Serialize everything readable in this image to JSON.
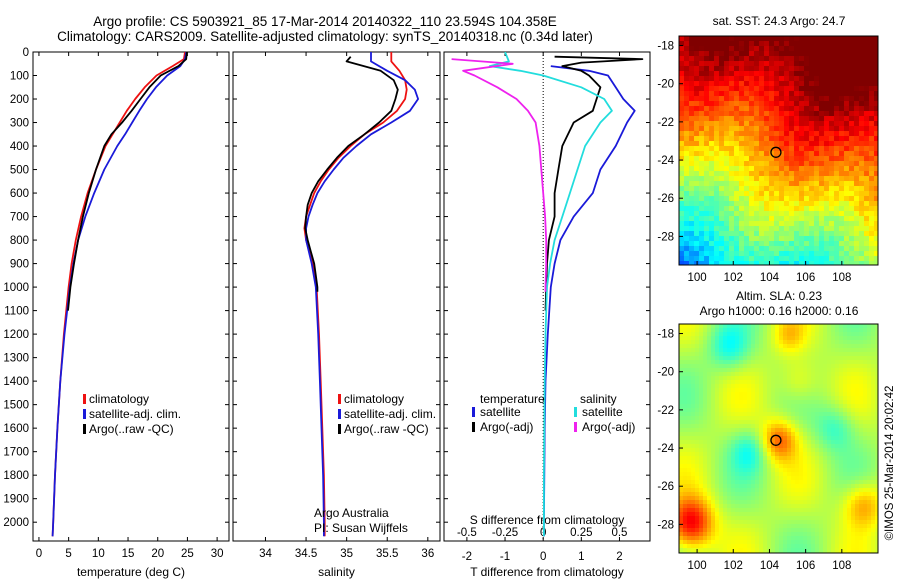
{
  "header": {
    "line1": "Argo profile: CS 5903921_85 17-Mar-2014 20140322_110 23.594S 104.358E",
    "line2": "Climatology: CARS2009. Satellite-adjusted climatology: synTS_20140318.nc (0.34d later)"
  },
  "colors": {
    "climatology": "#ee1111",
    "satellite": "#1a1ad9",
    "argo": "#000000",
    "sat_salinity": "#22dddd",
    "argo_salinity": "#ee22ee"
  },
  "chart_data": [
    {
      "type": "line",
      "id": "temperature",
      "xlabel": "temperature (deg C)",
      "xlim": [
        -1,
        32
      ],
      "ylim": [
        0,
        2080
      ],
      "y_reversed": true,
      "xticks": [
        0,
        5,
        10,
        15,
        20,
        25,
        30
      ],
      "yticks": [
        0,
        100,
        200,
        300,
        400,
        500,
        600,
        700,
        800,
        900,
        1000,
        1100,
        1200,
        1300,
        1400,
        1500,
        1600,
        1700,
        1800,
        1900,
        2000
      ],
      "legend": [
        "climatology",
        "satellite-adj. clim.",
        "Argo(..raw -QC)"
      ],
      "series": [
        {
          "key": "climatology",
          "color": "#ee1111",
          "depth": [
            0,
            30,
            60,
            100,
            150,
            200,
            250,
            300,
            350,
            400,
            500,
            600,
            700,
            800,
            900,
            1000,
            1200,
            1400,
            1600,
            1800,
            2000,
            2060
          ],
          "values": [
            24.6,
            24.4,
            22.5,
            19.8,
            17.8,
            16.2,
            14.8,
            13.6,
            12.4,
            11.2,
            9.6,
            8.2,
            7.1,
            6.2,
            5.5,
            5.0,
            4.2,
            3.6,
            3.1,
            2.7,
            2.4,
            2.3
          ]
        },
        {
          "key": "satellite",
          "color": "#1a1ad9",
          "depth": [
            0,
            30,
            60,
            100,
            150,
            200,
            250,
            300,
            350,
            400,
            500,
            600,
            700,
            800,
            900,
            1000,
            1200,
            1400,
            1600,
            1800,
            2000,
            2060
          ],
          "values": [
            24.8,
            24.6,
            23.8,
            21.6,
            19.7,
            18.2,
            16.9,
            15.7,
            14.5,
            13.2,
            11.0,
            9.3,
            7.8,
            6.6,
            5.8,
            5.2,
            4.3,
            3.6,
            3.1,
            2.7,
            2.4,
            2.3
          ]
        },
        {
          "key": "argo",
          "color": "#000000",
          "depth": [
            0,
            30,
            60,
            100,
            150,
            200,
            250,
            300,
            350,
            400,
            500,
            600,
            700,
            800,
            900,
            1000,
            1100
          ],
          "values": [
            24.9,
            24.8,
            23.5,
            20.5,
            18.6,
            17.1,
            15.6,
            14.0,
            12.2,
            11.0,
            9.6,
            8.4,
            7.4,
            6.6,
            5.9,
            5.3,
            4.9
          ]
        }
      ]
    },
    {
      "type": "line",
      "id": "salinity",
      "xlabel": "salinity",
      "xlim": [
        33.6,
        36.15
      ],
      "ylim": [
        0,
        2080
      ],
      "y_reversed": true,
      "xticks": [
        34,
        34.5,
        35,
        35.5,
        36
      ],
      "legend": [
        "climatology",
        "satellite-adj. clim.",
        "Argo(..raw -QC)"
      ],
      "annotations": [
        "Argo Australia",
        "PI: Susan Wijffels"
      ],
      "series": [
        {
          "key": "climatology",
          "color": "#ee1111",
          "depth": [
            0,
            40,
            80,
            120,
            160,
            200,
            250,
            300,
            350,
            400,
            450,
            500,
            550,
            600,
            650,
            700,
            750,
            800,
            900,
            1000,
            1200,
            1400,
            1600,
            1800,
            2000,
            2060
          ],
          "values": [
            35.55,
            35.55,
            35.65,
            35.72,
            35.74,
            35.72,
            35.62,
            35.45,
            35.22,
            35.05,
            34.9,
            34.78,
            34.68,
            34.6,
            34.55,
            34.5,
            34.48,
            34.5,
            34.58,
            34.63,
            34.66,
            34.68,
            34.7,
            34.72,
            34.73,
            34.73
          ]
        },
        {
          "key": "satellite",
          "color": "#1a1ad9",
          "depth": [
            0,
            40,
            80,
            120,
            160,
            200,
            250,
            300,
            350,
            400,
            450,
            500,
            550,
            600,
            650,
            700,
            750,
            800,
            900,
            1000,
            1200,
            1400,
            1600,
            1800,
            2000,
            2060
          ],
          "values": [
            35.3,
            35.3,
            35.5,
            35.72,
            35.84,
            35.88,
            35.78,
            35.55,
            35.3,
            35.12,
            34.96,
            34.84,
            34.73,
            34.64,
            34.58,
            34.53,
            34.5,
            34.5,
            34.57,
            34.62,
            34.65,
            34.67,
            34.69,
            34.71,
            34.72,
            34.72
          ]
        },
        {
          "key": "argo",
          "color": "#000000",
          "depth": [
            20,
            40,
            80,
            120,
            160,
            200,
            250,
            300,
            350,
            400,
            450,
            500,
            550,
            600,
            650,
            700,
            750,
            800,
            850,
            900,
            950,
            1000,
            1020
          ],
          "values": [
            35.05,
            35.0,
            35.42,
            35.58,
            35.63,
            35.6,
            35.55,
            35.4,
            35.22,
            35.02,
            34.88,
            34.76,
            34.65,
            34.57,
            34.52,
            34.5,
            34.49,
            34.52,
            34.56,
            34.6,
            34.62,
            34.64,
            34.64
          ]
        }
      ]
    },
    {
      "type": "line",
      "id": "difference",
      "xlabel": "T difference from climatology",
      "xlabel2": "S difference from climatology",
      "xlim": [
        -2.6,
        2.8
      ],
      "ylim": [
        0,
        2080
      ],
      "y_reversed": true,
      "xticks": [
        -2,
        -1,
        0,
        1,
        2
      ],
      "sticks_label": [
        "-0.5",
        "-0.25",
        "0",
        "0.25",
        "0.5"
      ],
      "sticks_pos": [
        -2,
        -1,
        0,
        1,
        2
      ],
      "legend": {
        "temperature": "temperature",
        "salinity": "salinity",
        "satellite": "satellite",
        "argo_adj": "Argo(-adj)"
      },
      "series": [
        {
          "key": "T satellite",
          "color": "#1a1ad9",
          "depth": [
            60,
            80,
            100,
            150,
            200,
            250,
            300,
            400,
            500,
            600,
            700,
            800,
            900,
            1000,
            1200,
            1400,
            1600,
            1800,
            2000,
            2060
          ],
          "values": [
            0.2,
            1.2,
            1.7,
            1.9,
            2.1,
            2.4,
            2.2,
            1.9,
            1.5,
            1.3,
            0.8,
            0.45,
            0.3,
            0.2,
            0.12,
            0.06,
            0.04,
            0.03,
            0.02,
            0.02
          ]
        },
        {
          "key": "T Argo",
          "color": "#000000",
          "depth": [
            20,
            30,
            45,
            60,
            80,
            100,
            150,
            200,
            250,
            300,
            400,
            500,
            600,
            700,
            800,
            900,
            1000,
            1100
          ],
          "values": [
            0.3,
            2.6,
            1.0,
            0.5,
            1.0,
            1.2,
            1.5,
            1.4,
            1.3,
            0.8,
            0.5,
            0.4,
            0.3,
            0.3,
            0.15,
            0.1,
            0.08,
            0.06
          ]
        },
        {
          "key": "S satellite",
          "color": "#22dddd",
          "depth": [
            0,
            40,
            60,
            80,
            100,
            150,
            200,
            250,
            300,
            400,
            500,
            600,
            700,
            800,
            900,
            1000,
            1200,
            1400,
            1600,
            1800,
            2000,
            2060
          ],
          "values": [
            -1.0,
            -0.9,
            -1.4,
            -0.6,
            0.0,
            1.0,
            1.6,
            1.8,
            1.5,
            1.1,
            0.9,
            0.7,
            0.5,
            0.3,
            0.18,
            0.1,
            0.06,
            0.04,
            0.03,
            0.02,
            0.02,
            0.02
          ]
        },
        {
          "key": "S Argo",
          "color": "#ee22ee",
          "depth": [
            30,
            50,
            80,
            100,
            150,
            200,
            250,
            300,
            400,
            500,
            600,
            700,
            800,
            900,
            1000,
            1020
          ],
          "values": [
            -2.4,
            -0.8,
            -2.1,
            -1.8,
            -1.2,
            -0.7,
            -0.4,
            -0.2,
            -0.1,
            -0.05,
            0.0,
            0.05,
            0.08,
            0.08,
            0.06,
            0.06
          ]
        }
      ]
    },
    {
      "type": "heatmap",
      "id": "sst-map",
      "title": "sat. SST: 24.3 Argo: 24.7",
      "xticks": [
        100,
        102,
        104,
        106,
        108
      ],
      "yticks": [
        -18,
        -20,
        -22,
        -24,
        -26,
        -28
      ],
      "xlim": [
        99,
        110
      ],
      "ylim": [
        -29.5,
        -17.5
      ],
      "marker": [
        104.358,
        -23.594
      ]
    },
    {
      "type": "heatmap",
      "id": "sla-map",
      "title": "Altim. SLA: 0.23",
      "subtitle": "Argo h1000: 0.16 h2000: 0.16",
      "xticks": [
        100,
        102,
        104,
        106,
        108
      ],
      "yticks": [
        -18,
        -20,
        -22,
        -24,
        -26,
        -28
      ],
      "xlim": [
        99,
        110
      ],
      "ylim": [
        -29.5,
        -17.5
      ],
      "marker": [
        104.358,
        -23.594
      ]
    }
  ],
  "footer": {
    "credit": "©IMOS 25-Mar-2014 20:02:42"
  }
}
